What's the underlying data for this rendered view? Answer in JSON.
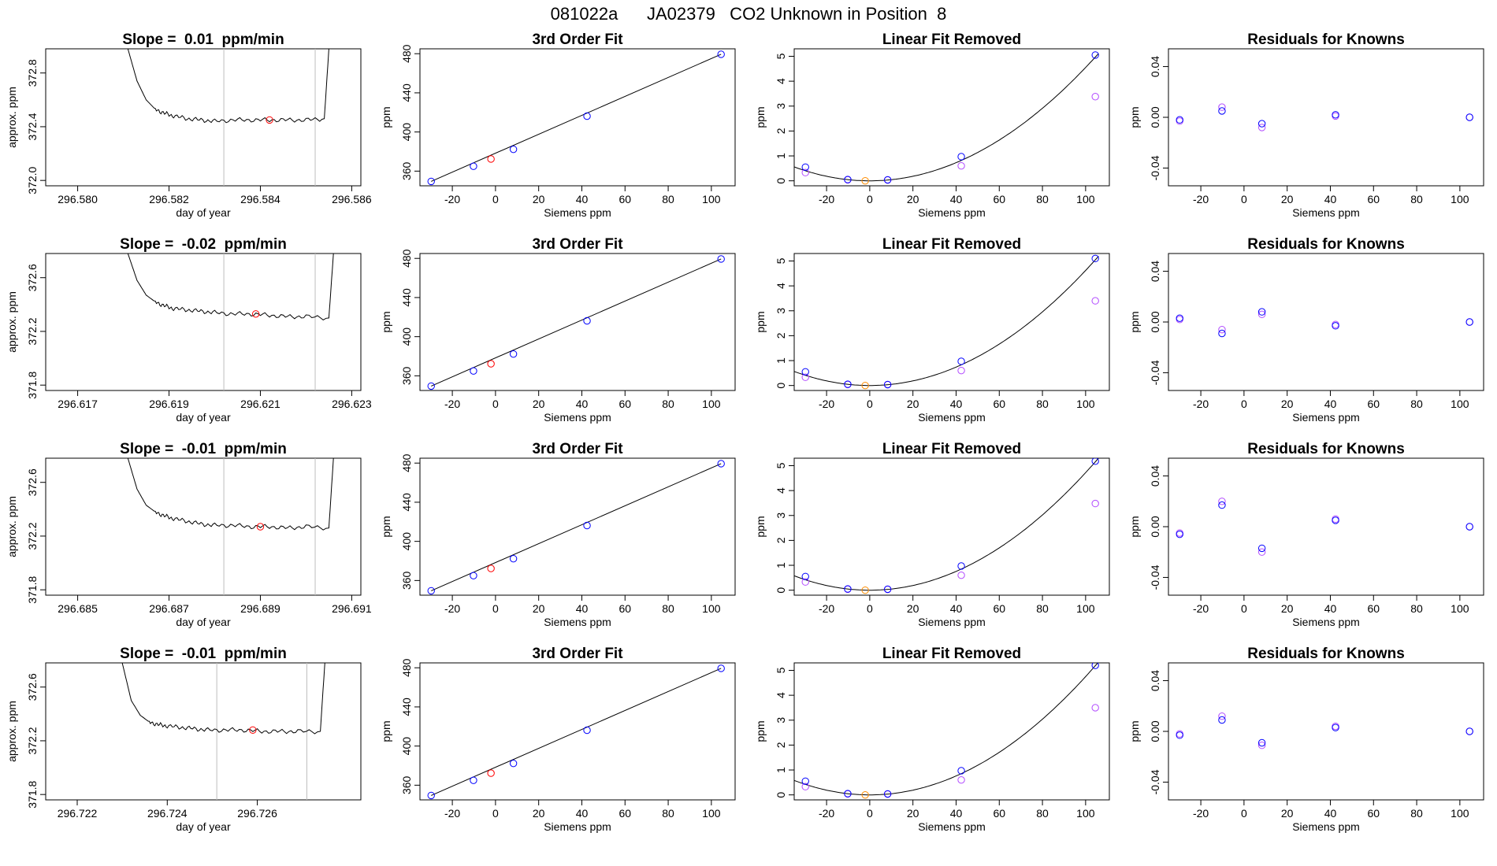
{
  "figure_title": "081022a      JA02379   CO2 Unknown in Position  8",
  "colors": {
    "blue": "#0000ff",
    "violet": "#b24bff",
    "red": "#ff0000",
    "orange": "#ff8c00",
    "grid": "#bebebe",
    "line": "#000000"
  },
  "chart_data": [
    {
      "type": "line",
      "panel": "timeseries-1",
      "title": "Slope =  0.01  ppm/min",
      "xlabel": "day of year",
      "ylabel": "approx. ppm",
      "xlim": [
        296.5793,
        296.5862
      ],
      "ylim": [
        371.96,
        372.98
      ],
      "xticks": [
        296.58,
        296.582,
        296.584,
        296.586
      ],
      "xtick_labels": [
        "296.580",
        "296.582",
        "296.584",
        "296.586"
      ],
      "yticks": [
        372.0,
        372.4,
        372.8
      ],
      "ytick_labels": [
        "372.0",
        "372.4",
        "372.8"
      ],
      "vlines": [
        296.5832,
        296.5852
      ],
      "x": [
        296.5811,
        296.5813,
        296.5815,
        296.5817,
        296.5819,
        296.5821,
        296.5824,
        296.5827,
        296.583,
        296.5834,
        296.5838,
        296.5842,
        296.5846,
        296.585,
        296.5854,
        296.5855
      ],
      "y": [
        372.98,
        372.74,
        372.6,
        372.53,
        372.5,
        372.48,
        372.46,
        372.45,
        372.44,
        372.45,
        372.45,
        372.45,
        372.45,
        372.45,
        372.46,
        372.98
      ],
      "marker": {
        "x": 296.5842,
        "y": 372.45
      }
    },
    {
      "type": "scatter",
      "panel": "fit-1",
      "title": "3rd Order Fit",
      "xlabel": "Siemens ppm",
      "ylabel": "ppm",
      "xlim": [
        -35,
        111
      ],
      "ylim": [
        345,
        485
      ],
      "xticks": [
        -20,
        0,
        20,
        40,
        60,
        80,
        100
      ],
      "xtick_labels": [
        "-20",
        "0",
        "20",
        "40",
        "60",
        "80",
        "100"
      ],
      "yticks": [
        360,
        400,
        440,
        480
      ],
      "ytick_labels": [
        "360",
        "400",
        "440",
        "480"
      ],
      "knowns": {
        "x": [
          -29.8,
          -10.2,
          8.3,
          42.4,
          104.5
        ],
        "y": [
          349.5,
          365.0,
          382.3,
          416.2,
          479.4
        ]
      },
      "unknown": {
        "x": -2.1,
        "y": 372.4
      }
    },
    {
      "type": "scatter",
      "panel": "linear-1",
      "title": "Linear Fit Removed",
      "xlabel": "Siemens ppm",
      "ylabel": "ppm",
      "xlim": [
        -35,
        111
      ],
      "ylim": [
        -0.2,
        5.3
      ],
      "xticks": [
        -20,
        0,
        20,
        40,
        60,
        80,
        100
      ],
      "xtick_labels": [
        "-20",
        "0",
        "20",
        "40",
        "60",
        "80",
        "100"
      ],
      "yticks": [
        0,
        1,
        2,
        3,
        4,
        5
      ],
      "ytick_labels": [
        "0",
        "1",
        "2",
        "3",
        "4",
        "5"
      ],
      "fit": {
        "vertex_x": 0,
        "coef": 0.000455
      },
      "knowns": {
        "x": [
          -29.8,
          -10.2,
          8.3,
          42.4,
          104.5
        ],
        "y": [
          0.55,
          0.05,
          0.04,
          0.97,
          5.05
        ]
      },
      "knowns_alt": {
        "x": [
          -29.8,
          -10.2,
          8.3,
          42.4,
          104.5
        ],
        "y": [
          0.33,
          0.04,
          0.03,
          0.6,
          3.38
        ]
      },
      "unknown": {
        "x": -2.1,
        "y": 0.0
      }
    },
    {
      "type": "scatter",
      "panel": "resid-1",
      "title": "Residuals for Knowns",
      "xlabel": "Siemens ppm",
      "ylabel": "ppm",
      "xlim": [
        -35,
        111
      ],
      "ylim": [
        -0.054,
        0.054
      ],
      "xticks": [
        -20,
        0,
        20,
        40,
        60,
        80,
        100
      ],
      "xtick_labels": [
        "-20",
        "0",
        "20",
        "40",
        "60",
        "80",
        "100"
      ],
      "yticks": [
        -0.04,
        0.0,
        0.04
      ],
      "ytick_labels": [
        "-0.04",
        "0.00",
        "0.04"
      ],
      "resid_blue": {
        "x": [
          -29.8,
          -10.2,
          8.3,
          42.4,
          104.5
        ],
        "y": [
          -0.002,
          0.005,
          -0.005,
          0.002,
          0.0
        ]
      },
      "resid_violet": {
        "x": [
          -29.8,
          -10.2,
          8.3,
          42.4,
          104.5
        ],
        "y": [
          -0.003,
          0.008,
          -0.008,
          0.001,
          0.0
        ]
      }
    },
    {
      "type": "line",
      "panel": "timeseries-2",
      "title": "Slope =  -0.02  ppm/min",
      "xlabel": "day of year",
      "ylabel": "approx. ppm",
      "xlim": [
        296.6163,
        296.6232
      ],
      "ylim": [
        371.76,
        372.78
      ],
      "xticks": [
        296.617,
        296.619,
        296.621,
        296.623
      ],
      "xtick_labels": [
        "296.617",
        "296.619",
        "296.621",
        "296.623"
      ],
      "yticks": [
        371.8,
        372.2,
        372.6
      ],
      "ytick_labels": [
        "371.8",
        "372.2",
        "372.6"
      ],
      "vlines": [
        296.6202,
        296.6222
      ],
      "x": [
        296.6181,
        296.6183,
        296.6185,
        296.6187,
        296.6189,
        296.6191,
        296.6194,
        296.6197,
        296.62,
        296.6204,
        296.6208,
        296.6212,
        296.6216,
        296.622,
        296.6225,
        296.6226
      ],
      "y": [
        372.78,
        372.58,
        372.47,
        372.42,
        372.39,
        372.37,
        372.36,
        372.35,
        372.34,
        372.33,
        372.33,
        372.32,
        372.31,
        372.31,
        372.3,
        372.78
      ],
      "marker": {
        "x": 296.6209,
        "y": 372.33
      }
    },
    {
      "type": "scatter",
      "panel": "fit-2",
      "title": "3rd Order Fit",
      "xlabel": "Siemens ppm",
      "ylabel": "ppm",
      "xlim": [
        -35,
        111
      ],
      "ylim": [
        345,
        485
      ],
      "xticks": [
        -20,
        0,
        20,
        40,
        60,
        80,
        100
      ],
      "xtick_labels": [
        "-20",
        "0",
        "20",
        "40",
        "60",
        "80",
        "100"
      ],
      "yticks": [
        360,
        400,
        440,
        480
      ],
      "ytick_labels": [
        "360",
        "400",
        "440",
        "480"
      ],
      "knowns": {
        "x": [
          -29.8,
          -10.2,
          8.3,
          42.4,
          104.5
        ],
        "y": [
          349.5,
          365.0,
          382.3,
          416.2,
          479.4
        ]
      },
      "unknown": {
        "x": -2.1,
        "y": 372.3
      }
    },
    {
      "type": "scatter",
      "panel": "linear-2",
      "title": "Linear Fit Removed",
      "xlabel": "Siemens ppm",
      "ylabel": "ppm",
      "xlim": [
        -35,
        111
      ],
      "ylim": [
        -0.2,
        5.3
      ],
      "xticks": [
        -20,
        0,
        20,
        40,
        60,
        80,
        100
      ],
      "xtick_labels": [
        "-20",
        "0",
        "20",
        "40",
        "60",
        "80",
        "100"
      ],
      "yticks": [
        0,
        1,
        2,
        3,
        4,
        5
      ],
      "ytick_labels": [
        "0",
        "1",
        "2",
        "3",
        "4",
        "5"
      ],
      "fit": {
        "vertex_x": 0,
        "coef": 0.000462
      },
      "knowns": {
        "x": [
          -29.8,
          -10.2,
          8.3,
          42.4,
          104.5
        ],
        "y": [
          0.55,
          0.05,
          0.04,
          0.97,
          5.1
        ]
      },
      "knowns_alt": {
        "x": [
          -29.8,
          -10.2,
          8.3,
          42.4,
          104.5
        ],
        "y": [
          0.33,
          0.04,
          0.03,
          0.6,
          3.4
        ]
      },
      "unknown": {
        "x": -2.1,
        "y": 0.0
      }
    },
    {
      "type": "scatter",
      "panel": "resid-2",
      "title": "Residuals for Knowns",
      "xlabel": "Siemens ppm",
      "ylabel": "ppm",
      "xlim": [
        -35,
        111
      ],
      "ylim": [
        -0.054,
        0.054
      ],
      "xticks": [
        -20,
        0,
        20,
        40,
        60,
        80,
        100
      ],
      "xtick_labels": [
        "-20",
        "0",
        "20",
        "40",
        "60",
        "80",
        "100"
      ],
      "yticks": [
        -0.04,
        0.0,
        0.04
      ],
      "ytick_labels": [
        "-0.04",
        "0.00",
        "0.04"
      ],
      "resid_blue": {
        "x": [
          -29.8,
          -10.2,
          8.3,
          42.4,
          104.5
        ],
        "y": [
          0.003,
          -0.009,
          0.008,
          -0.003,
          0.0
        ]
      },
      "resid_violet": {
        "x": [
          -29.8,
          -10.2,
          8.3,
          42.4,
          104.5
        ],
        "y": [
          0.002,
          -0.006,
          0.006,
          -0.002,
          0.0
        ]
      }
    },
    {
      "type": "line",
      "panel": "timeseries-3",
      "title": "Slope =  -0.01  ppm/min",
      "xlabel": "day of year",
      "ylabel": "approx. ppm",
      "xlim": [
        296.6843,
        296.6912
      ],
      "ylim": [
        371.76,
        372.78
      ],
      "xticks": [
        296.685,
        296.687,
        296.689,
        296.691
      ],
      "xtick_labels": [
        "296.685",
        "296.687",
        "296.689",
        "296.691"
      ],
      "yticks": [
        371.8,
        372.2,
        372.6
      ],
      "ytick_labels": [
        "371.8",
        "372.2",
        "372.6"
      ],
      "vlines": [
        296.6882,
        296.6902
      ],
      "x": [
        296.6861,
        296.6863,
        296.6865,
        296.6867,
        296.6869,
        296.6871,
        296.6874,
        296.6877,
        296.688,
        296.6884,
        296.6888,
        296.6892,
        296.6896,
        296.69,
        296.6905,
        296.6906
      ],
      "y": [
        372.78,
        372.55,
        372.43,
        372.38,
        372.35,
        372.33,
        372.31,
        372.29,
        372.28,
        372.28,
        372.27,
        372.27,
        372.26,
        372.27,
        372.26,
        372.78
      ],
      "marker": {
        "x": 296.689,
        "y": 372.27
      }
    },
    {
      "type": "scatter",
      "panel": "fit-3",
      "title": "3rd Order Fit",
      "xlabel": "Siemens ppm",
      "ylabel": "ppm",
      "xlim": [
        -35,
        111
      ],
      "ylim": [
        345,
        485
      ],
      "xticks": [
        -20,
        0,
        20,
        40,
        60,
        80,
        100
      ],
      "xtick_labels": [
        "-20",
        "0",
        "20",
        "40",
        "60",
        "80",
        "100"
      ],
      "yticks": [
        360,
        400,
        440,
        480
      ],
      "ytick_labels": [
        "360",
        "400",
        "440",
        "480"
      ],
      "knowns": {
        "x": [
          -29.8,
          -10.2,
          8.3,
          42.4,
          104.5
        ],
        "y": [
          349.5,
          365.0,
          382.3,
          416.2,
          479.4
        ]
      },
      "unknown": {
        "x": -2.1,
        "y": 372.3
      }
    },
    {
      "type": "scatter",
      "panel": "linear-3",
      "title": "Linear Fit Removed",
      "xlabel": "Siemens ppm",
      "ylabel": "ppm",
      "xlim": [
        -35,
        111
      ],
      "ylim": [
        -0.2,
        5.3
      ],
      "xticks": [
        -20,
        0,
        20,
        40,
        60,
        80,
        100
      ],
      "xtick_labels": [
        "-20",
        "0",
        "20",
        "40",
        "60",
        "80",
        "100"
      ],
      "yticks": [
        0,
        1,
        2,
        3,
        4,
        5
      ],
      "ytick_labels": [
        "0",
        "1",
        "2",
        "3",
        "4",
        "5"
      ],
      "fit": {
        "vertex_x": 0,
        "coef": 0.000472
      },
      "knowns": {
        "x": [
          -29.8,
          -10.2,
          8.3,
          42.4,
          104.5
        ],
        "y": [
          0.55,
          0.05,
          0.04,
          0.97,
          5.18
        ]
      },
      "knowns_alt": {
        "x": [
          -29.8,
          -10.2,
          8.3,
          42.4,
          104.5
        ],
        "y": [
          0.33,
          0.04,
          0.03,
          0.6,
          3.48
        ]
      },
      "unknown": {
        "x": -2.1,
        "y": 0.0
      }
    },
    {
      "type": "scatter",
      "panel": "resid-3",
      "title": "Residuals for Knowns",
      "xlabel": "Siemens ppm",
      "ylabel": "ppm",
      "xlim": [
        -35,
        111
      ],
      "ylim": [
        -0.054,
        0.054
      ],
      "xticks": [
        -20,
        0,
        20,
        40,
        60,
        80,
        100
      ],
      "xtick_labels": [
        "-20",
        "0",
        "20",
        "40",
        "60",
        "80",
        "100"
      ],
      "yticks": [
        -0.04,
        0.0,
        0.04
      ],
      "ytick_labels": [
        "-0.04",
        "0.00",
        "0.04"
      ],
      "resid_blue": {
        "x": [
          -29.8,
          -10.2,
          8.3,
          42.4,
          104.5
        ],
        "y": [
          -0.006,
          0.017,
          -0.017,
          0.005,
          0.0
        ]
      },
      "resid_violet": {
        "x": [
          -29.8,
          -10.2,
          8.3,
          42.4,
          104.5
        ],
        "y": [
          -0.005,
          0.02,
          -0.02,
          0.006,
          0.0
        ]
      }
    },
    {
      "type": "line",
      "panel": "timeseries-4",
      "title": "Slope =  -0.01  ppm/min",
      "xlabel": "day of year",
      "ylabel": "approx. ppm",
      "xlim": [
        296.7213,
        296.7283
      ],
      "ylim": [
        371.76,
        372.78
      ],
      "xticks": [
        296.722,
        296.724,
        296.726
      ],
      "xtick_labels": [
        "296.722",
        "296.724",
        "296.726"
      ],
      "yticks": [
        371.8,
        372.2,
        372.6
      ],
      "ytick_labels": [
        "371.8",
        "372.2",
        "372.6"
      ],
      "vlines": [
        296.7251,
        296.7271
      ],
      "x": [
        296.723,
        296.7232,
        296.7234,
        296.7236,
        296.7238,
        296.724,
        296.7243,
        296.7246,
        296.7249,
        296.7253,
        296.7257,
        296.7261,
        296.7265,
        296.7269,
        296.7274,
        296.7275
      ],
      "y": [
        372.78,
        372.5,
        372.39,
        372.34,
        372.32,
        372.31,
        372.3,
        372.29,
        372.28,
        372.28,
        372.28,
        372.27,
        372.27,
        372.27,
        372.27,
        372.78
      ],
      "marker": {
        "x": 296.7259,
        "y": 372.28
      }
    },
    {
      "type": "scatter",
      "panel": "fit-4",
      "title": "3rd Order Fit",
      "xlabel": "Siemens ppm",
      "ylabel": "ppm",
      "xlim": [
        -35,
        111
      ],
      "ylim": [
        345,
        485
      ],
      "xticks": [
        -20,
        0,
        20,
        40,
        60,
        80,
        100
      ],
      "xtick_labels": [
        "-20",
        "0",
        "20",
        "40",
        "60",
        "80",
        "100"
      ],
      "yticks": [
        360,
        400,
        440,
        480
      ],
      "ytick_labels": [
        "360",
        "400",
        "440",
        "480"
      ],
      "knowns": {
        "x": [
          -29.8,
          -10.2,
          8.3,
          42.4,
          104.5
        ],
        "y": [
          349.5,
          365.0,
          382.3,
          416.2,
          479.4
        ]
      },
      "unknown": {
        "x": -2.1,
        "y": 372.3
      }
    },
    {
      "type": "scatter",
      "panel": "linear-4",
      "title": "Linear Fit Removed",
      "xlabel": "Siemens ppm",
      "ylabel": "ppm",
      "xlim": [
        -35,
        111
      ],
      "ylim": [
        -0.2,
        5.3
      ],
      "xticks": [
        -20,
        0,
        20,
        40,
        60,
        80,
        100
      ],
      "xtick_labels": [
        "-20",
        "0",
        "20",
        "40",
        "60",
        "80",
        "100"
      ],
      "yticks": [
        0,
        1,
        2,
        3,
        4,
        5
      ],
      "ytick_labels": [
        "0",
        "1",
        "2",
        "3",
        "4",
        "5"
      ],
      "fit": {
        "vertex_x": 0,
        "coef": 0.000475
      },
      "knowns": {
        "x": [
          -29.8,
          -10.2,
          8.3,
          42.4,
          104.5
        ],
        "y": [
          0.55,
          0.05,
          0.04,
          0.97,
          5.2
        ]
      },
      "knowns_alt": {
        "x": [
          -29.8,
          -10.2,
          8.3,
          42.4,
          104.5
        ],
        "y": [
          0.33,
          0.04,
          0.03,
          0.6,
          3.5
        ]
      },
      "unknown": {
        "x": -2.1,
        "y": 0.0
      }
    },
    {
      "type": "scatter",
      "panel": "resid-4",
      "title": "Residuals for Knowns",
      "xlabel": "Siemens ppm",
      "ylabel": "ppm",
      "xlim": [
        -35,
        111
      ],
      "ylim": [
        -0.054,
        0.054
      ],
      "xticks": [
        -20,
        0,
        20,
        40,
        60,
        80,
        100
      ],
      "xtick_labels": [
        "-20",
        "0",
        "20",
        "40",
        "60",
        "80",
        "100"
      ],
      "yticks": [
        -0.04,
        0.0,
        0.04
      ],
      "ytick_labels": [
        "-0.04",
        "0.00",
        "0.04"
      ],
      "resid_blue": {
        "x": [
          -29.8,
          -10.2,
          8.3,
          42.4,
          104.5
        ],
        "y": [
          -0.003,
          0.009,
          -0.009,
          0.003,
          0.0
        ]
      },
      "resid_violet": {
        "x": [
          -29.8,
          -10.2,
          8.3,
          42.4,
          104.5
        ],
        "y": [
          -0.002,
          0.012,
          -0.011,
          0.004,
          0.0
        ]
      }
    }
  ]
}
